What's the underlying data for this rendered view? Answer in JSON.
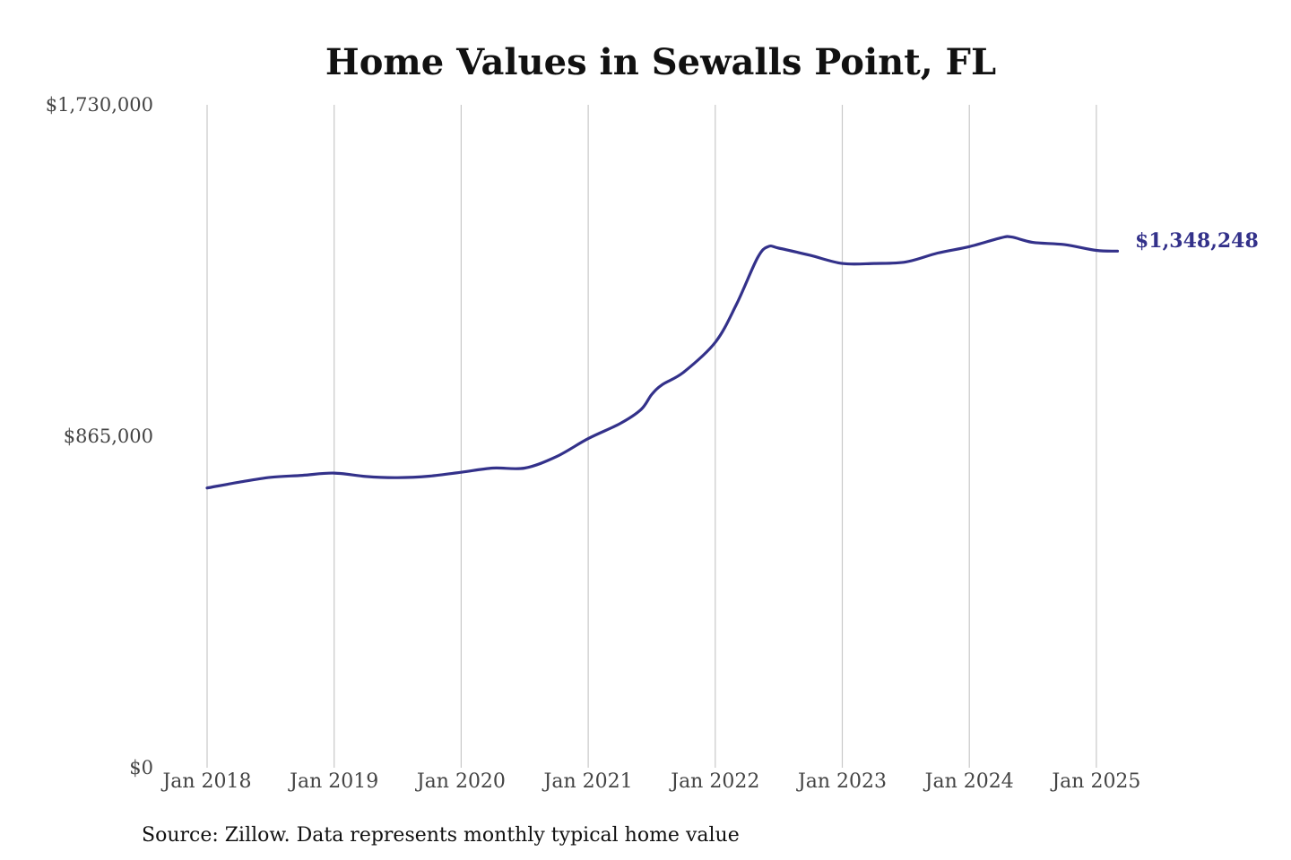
{
  "chart_data": {
    "type": "line",
    "title": "Home Values in Sewalls Point, FL",
    "source": "Source: Zillow. Data represents monthly typical home value",
    "xlabel": "",
    "ylabel": "",
    "x_tick_labels": [
      "Jan 2018",
      "Jan 2019",
      "Jan 2020",
      "Jan 2021",
      "Jan 2022",
      "Jan 2023",
      "Jan 2024",
      "Jan 2025"
    ],
    "y_tick_labels": [
      "$1,730,000",
      "$865,000",
      "$0"
    ],
    "y_tick_values": [
      1730000,
      865000,
      0
    ],
    "ylim": [
      0,
      1730000
    ],
    "grid": "vertical",
    "line_color": "#33318a",
    "end_label": "$1,348,248",
    "series": [
      {
        "x": [
          "2018-01",
          "2018-04",
          "2018-07",
          "2018-10",
          "2019-01",
          "2019-04",
          "2019-07",
          "2019-10",
          "2020-01",
          "2020-04",
          "2020-07",
          "2020-10",
          "2021-01",
          "2021-04",
          "2021-06",
          "2021-07",
          "2021-08",
          "2021-10",
          "2022-01",
          "2022-03",
          "2022-05",
          "2022-06",
          "2022-07",
          "2022-10",
          "2023-01",
          "2023-04",
          "2023-07",
          "2023-10",
          "2024-01",
          "2024-04",
          "2024-05",
          "2024-07",
          "2024-10",
          "2025-01",
          "2025-03"
        ],
        "values": [
          730000,
          745000,
          758000,
          763000,
          769000,
          760000,
          757000,
          761000,
          771000,
          782000,
          782000,
          812000,
          859000,
          898000,
          935000,
          974000,
          1000000,
          1032000,
          1110000,
          1209000,
          1331000,
          1360000,
          1356000,
          1337000,
          1316000,
          1316000,
          1320000,
          1343000,
          1360000,
          1383000,
          1385000,
          1371000,
          1365000,
          1350000,
          1348248
        ]
      }
    ]
  }
}
